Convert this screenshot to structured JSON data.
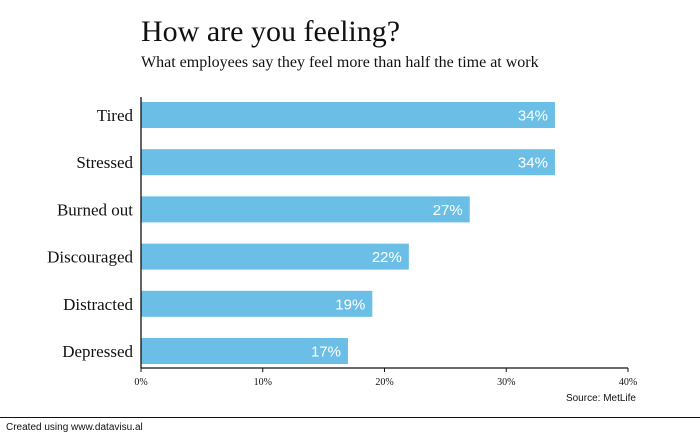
{
  "chart_data": {
    "type": "bar",
    "orientation": "horizontal",
    "title": "How are you feeling?",
    "subtitle": "What employees say they feel more than half the time at work",
    "categories": [
      "Tired",
      "Stressed",
      "Burned out",
      "Discouraged",
      "Distracted",
      "Depressed"
    ],
    "values": [
      34,
      34,
      27,
      22,
      19,
      17
    ],
    "data_labels": [
      "34%",
      "34%",
      "27%",
      "22%",
      "19%",
      "17%"
    ],
    "xlim": [
      0,
      40
    ],
    "x_ticks": [
      0,
      10,
      20,
      30,
      40
    ],
    "x_tick_labels": [
      "0%",
      "10%",
      "20%",
      "30%",
      "40%"
    ],
    "grid": false,
    "bar_color": "#6bbfe6",
    "label_color": "#ffffff"
  },
  "source": "Source: MetLife",
  "footer": "Created using www.datavisu.al"
}
